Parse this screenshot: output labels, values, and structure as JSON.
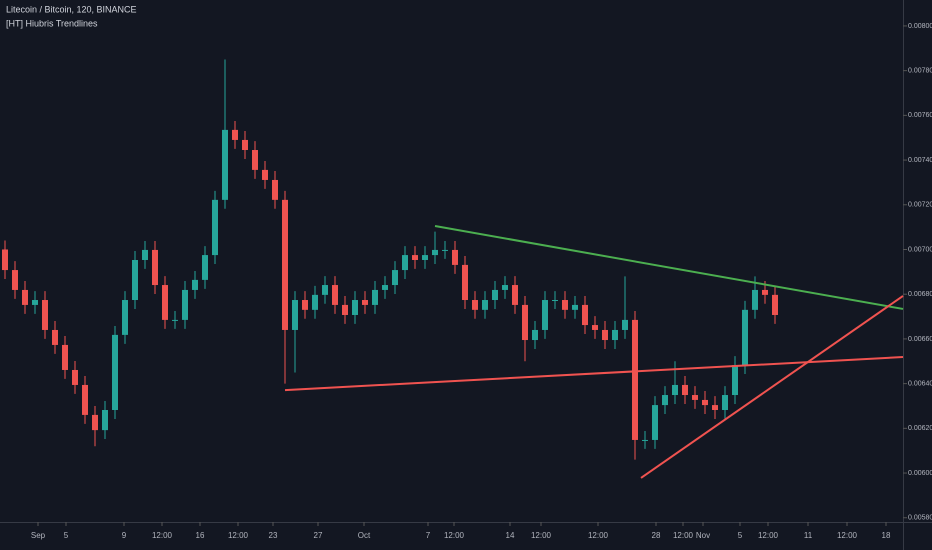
{
  "chart_data": {
    "type": "candlestick",
    "title": "Litecoin / Bitcoin, 120, BINANCE",
    "subtitle": "[HT] Hiubris Trendlines",
    "up_color": "#26a69a",
    "down_color": "#ef5350",
    "grid": false,
    "xlim": [
      -0.5,
      89.8
    ],
    "ylim": [
      0.005781,
      0.008116
    ],
    "yticks": [
      {
        "value": 0.0058,
        "label": "0.005800"
      },
      {
        "value": 0.006,
        "label": "0.006000"
      },
      {
        "value": 0.0062,
        "label": "0.006200"
      },
      {
        "value": 0.0064,
        "label": "0.006400"
      },
      {
        "value": 0.0066,
        "label": "0.006600"
      },
      {
        "value": 0.0068,
        "label": "0.006800"
      },
      {
        "value": 0.007,
        "label": "0.007000"
      },
      {
        "value": 0.0072,
        "label": "0.007200"
      },
      {
        "value": 0.0074,
        "label": "0.007400"
      },
      {
        "value": 0.0076,
        "label": "0.007600"
      },
      {
        "value": 0.0078,
        "label": "0.007800"
      },
      {
        "value": 0.008,
        "label": "0.008000"
      }
    ],
    "xticks": [
      {
        "value": 3.3,
        "label": "Sep"
      },
      {
        "value": 6.1,
        "label": "5"
      },
      {
        "value": 11.9,
        "label": "9"
      },
      {
        "value": 15.7,
        "label": "12:00"
      },
      {
        "value": 19.5,
        "label": "16"
      },
      {
        "value": 23.3,
        "label": "12:00"
      },
      {
        "value": 26.8,
        "label": "23"
      },
      {
        "value": 31.3,
        "label": "27"
      },
      {
        "value": 35.9,
        "label": "Oct"
      },
      {
        "value": 42.3,
        "label": "7"
      },
      {
        "value": 44.9,
        "label": "12:00"
      },
      {
        "value": 50.5,
        "label": "14"
      },
      {
        "value": 53.6,
        "label": "12:00"
      },
      {
        "value": 59.3,
        "label": "12:00"
      },
      {
        "value": 65.1,
        "label": "28"
      },
      {
        "value": 67.8,
        "label": "12:00"
      },
      {
        "value": 69.8,
        "label": "Nov"
      },
      {
        "value": 73.5,
        "label": "5"
      },
      {
        "value": 76.3,
        "label": "12:00"
      },
      {
        "value": 80.3,
        "label": "11"
      },
      {
        "value": 84.2,
        "label": "12:00"
      },
      {
        "value": 88.1,
        "label": "18"
      }
    ],
    "open": [
      0.007,
      0.006908,
      0.006819,
      0.006752,
      0.006774,
      0.00664,
      0.006573,
      0.006461,
      0.006394,
      0.00626,
      0.006192,
      0.006282,
      0.006618,
      0.006774,
      0.006953,
      0.006998,
      0.006841,
      0.006685,
      0.006685,
      0.006819,
      0.006864,
      0.006975,
      0.007222,
      0.007535,
      0.00749,
      0.007445,
      0.007356,
      0.007311,
      0.007222,
      0.00664,
      0.006774,
      0.00673,
      0.006797,
      0.006841,
      0.006752,
      0.006707,
      0.006774,
      0.006752,
      0.006819,
      0.006841,
      0.006908,
      0.006975,
      0.006953,
      0.006975,
      0.006998,
      0.006998,
      0.006931,
      0.006774,
      0.00673,
      0.006774,
      0.006819,
      0.006841,
      0.006752,
      0.006595,
      0.00664,
      0.006774,
      0.006774,
      0.00673,
      0.006752,
      0.006662,
      0.00664,
      0.006595,
      0.00664,
      0.006685,
      0.006148,
      0.006148,
      0.006304,
      0.006349,
      0.006394,
      0.006349,
      0.006327,
      0.006304,
      0.006282,
      0.006349,
      0.006483,
      0.00673,
      0.006819,
      0.006797
    ],
    "high": [
      0.00704,
      0.006948,
      0.006859,
      0.006814,
      0.006814,
      0.00668,
      0.006613,
      0.006501,
      0.006434,
      0.0063,
      0.006322,
      0.006658,
      0.006814,
      0.006993,
      0.007038,
      0.007038,
      0.006881,
      0.006725,
      0.006859,
      0.006904,
      0.007015,
      0.007262,
      0.00785,
      0.007575,
      0.00753,
      0.007485,
      0.007396,
      0.007351,
      0.007262,
      0.006814,
      0.006814,
      0.006837,
      0.006881,
      0.006881,
      0.006792,
      0.006814,
      0.006814,
      0.006859,
      0.006881,
      0.006948,
      0.007015,
      0.007015,
      0.007015,
      0.00708,
      0.007038,
      0.007038,
      0.006971,
      0.006814,
      0.006814,
      0.006859,
      0.006881,
      0.006881,
      0.006792,
      0.00668,
      0.006814,
      0.006814,
      0.006814,
      0.006792,
      0.006792,
      0.006702,
      0.00668,
      0.00668,
      0.00688,
      0.006725,
      0.006188,
      0.006344,
      0.006389,
      0.0065,
      0.006434,
      0.006389,
      0.006367,
      0.006344,
      0.006389,
      0.006523,
      0.00677,
      0.00688,
      0.006859,
      0.006837
    ],
    "low": [
      0.006868,
      0.006779,
      0.006712,
      0.006712,
      0.0066,
      0.006533,
      0.006421,
      0.006354,
      0.00622,
      0.00612,
      0.006152,
      0.006242,
      0.006578,
      0.006734,
      0.006913,
      0.006801,
      0.006645,
      0.006645,
      0.006645,
      0.006779,
      0.006824,
      0.006935,
      0.007182,
      0.00745,
      0.007405,
      0.007316,
      0.007271,
      0.007182,
      0.0064,
      0.00645,
      0.00669,
      0.00669,
      0.006757,
      0.006712,
      0.006667,
      0.006667,
      0.006712,
      0.006712,
      0.006779,
      0.006801,
      0.006868,
      0.006913,
      0.006913,
      0.006935,
      0.006958,
      0.006891,
      0.006734,
      0.00669,
      0.00669,
      0.006734,
      0.006779,
      0.006712,
      0.0065,
      0.006555,
      0.0066,
      0.006734,
      0.00669,
      0.00669,
      0.006622,
      0.0066,
      0.006555,
      0.006555,
      0.0066,
      0.00606,
      0.006108,
      0.006108,
      0.006264,
      0.006309,
      0.006309,
      0.006287,
      0.006264,
      0.006242,
      0.006242,
      0.006309,
      0.006443,
      0.00669,
      0.006757,
      0.006667
    ],
    "close": [
      0.006908,
      0.006819,
      0.006752,
      0.006774,
      0.00664,
      0.006573,
      0.006461,
      0.006394,
      0.00626,
      0.006192,
      0.006282,
      0.006618,
      0.006774,
      0.006953,
      0.006998,
      0.006841,
      0.006685,
      0.006685,
      0.006819,
      0.006864,
      0.006975,
      0.007222,
      0.007535,
      0.00749,
      0.007445,
      0.007356,
      0.007311,
      0.007222,
      0.00664,
      0.006774,
      0.00673,
      0.006797,
      0.006841,
      0.006752,
      0.006707,
      0.006774,
      0.006752,
      0.006819,
      0.006841,
      0.006908,
      0.006975,
      0.006953,
      0.006975,
      0.006998,
      0.006998,
      0.006931,
      0.006774,
      0.00673,
      0.006774,
      0.006819,
      0.006841,
      0.006752,
      0.006595,
      0.00664,
      0.006774,
      0.006774,
      0.00673,
      0.006752,
      0.006662,
      0.00664,
      0.006595,
      0.00664,
      0.006685,
      0.006148,
      0.006148,
      0.006304,
      0.006349,
      0.006394,
      0.006349,
      0.006327,
      0.006304,
      0.006282,
      0.006349,
      0.006483,
      0.00673,
      0.006819,
      0.006797,
      0.006707
    ],
    "trendlines": [
      {
        "color": "#4caf50",
        "x": [
          43,
          89.8
        ],
        "y": [
          0.007105,
          0.006734
        ]
      },
      {
        "color": "#f05350",
        "x": [
          28,
          89.8
        ],
        "y": [
          0.006371,
          0.006519
        ]
      },
      {
        "color": "#f05350",
        "x": [
          63.6,
          89.8
        ],
        "y": [
          0.005978,
          0.006792
        ]
      }
    ]
  }
}
